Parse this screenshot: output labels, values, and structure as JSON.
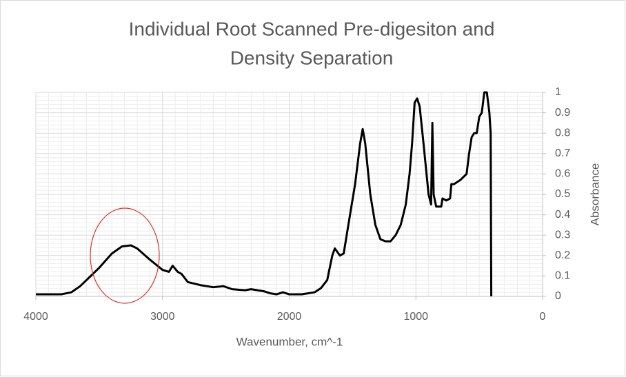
{
  "chart_data": {
    "type": "line",
    "title": [
      "Individual Root Scanned Pre-digesiton and",
      "Density Separation"
    ],
    "x_label": "Wavenumber, cm^-1",
    "y_label": "Absorbance",
    "y_axis_side": "right",
    "grid": true,
    "minor_grid": true,
    "color": "#000000",
    "xlim": [
      4000,
      0
    ],
    "xticks": [
      4000,
      3000,
      2000,
      1000,
      0
    ],
    "ylim": [
      0,
      1
    ],
    "yticks": [
      0,
      0.1,
      0.2,
      0.3,
      0.4,
      0.5,
      0.6,
      0.7,
      0.8,
      0.9,
      1
    ],
    "x": [
      4000,
      3800,
      3720,
      3650,
      3600,
      3500,
      3400,
      3320,
      3250,
      3200,
      3100,
      3000,
      2950,
      2920,
      2880,
      2850,
      2800,
      2700,
      2600,
      2520,
      2450,
      2350,
      2300,
      2200,
      2150,
      2100,
      2050,
      2000,
      1900,
      1800,
      1750,
      1700,
      1660,
      1640,
      1600,
      1570,
      1520,
      1480,
      1440,
      1420,
      1400,
      1360,
      1320,
      1280,
      1240,
      1200,
      1160,
      1120,
      1080,
      1050,
      1030,
      1010,
      990,
      970,
      940,
      900,
      880,
      870,
      860,
      840,
      800,
      790,
      760,
      730,
      720,
      700,
      650,
      600,
      580,
      560,
      540,
      520,
      500,
      480,
      460,
      440,
      430,
      420,
      410,
      405
    ],
    "y": [
      0.01,
      0.01,
      0.02,
      0.05,
      0.08,
      0.14,
      0.21,
      0.245,
      0.25,
      0.235,
      0.18,
      0.13,
      0.12,
      0.15,
      0.12,
      0.11,
      0.07,
      0.055,
      0.045,
      0.05,
      0.035,
      0.03,
      0.035,
      0.025,
      0.015,
      0.01,
      0.02,
      0.01,
      0.01,
      0.02,
      0.04,
      0.08,
      0.2,
      0.235,
      0.2,
      0.21,
      0.4,
      0.55,
      0.75,
      0.82,
      0.75,
      0.5,
      0.35,
      0.28,
      0.27,
      0.27,
      0.3,
      0.35,
      0.45,
      0.6,
      0.75,
      0.95,
      0.97,
      0.93,
      0.75,
      0.5,
      0.45,
      0.85,
      0.5,
      0.44,
      0.44,
      0.48,
      0.47,
      0.48,
      0.55,
      0.55,
      0.57,
      0.6,
      0.7,
      0.78,
      0.8,
      0.8,
      0.88,
      0.9,
      1.0,
      1.0,
      0.95,
      0.9,
      0.8,
      0.0
    ]
  }
}
